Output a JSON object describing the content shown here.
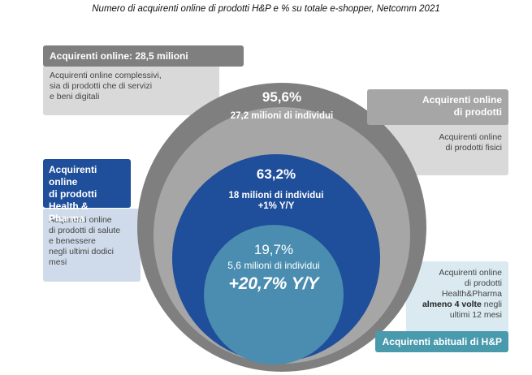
{
  "title": "Numero di acquirenti online di prodotti H&P e % su totale e-shopper, Netcomm 2021",
  "colors": {
    "outer_ring": "#7f7f7f",
    "ring2": "#a6a6a6",
    "ring3": "#1f4e9a",
    "inner": "#4a8db0",
    "box_dark_gray": "#7f7f7f",
    "box_light_gray": "#d9d9d9",
    "box_blue": "#1f4e9a",
    "box_light_blue": "#cfdbea",
    "box_teal": "#4a9aae",
    "box_light_teal": "#daeaf0"
  },
  "boxes": {
    "online": {
      "header": "Acquirenti online: 28,5 milioni",
      "desc": [
        "Acquirenti online complessivi,",
        "sia di prodotti che di servizi",
        "e beni digitali"
      ]
    },
    "prodotti": {
      "header": [
        "Acquirenti online",
        "di prodotti"
      ],
      "desc": [
        "Acquirenti online",
        "di prodotti fisici"
      ]
    },
    "hp": {
      "header": [
        "Acquirenti online",
        "di prodotti",
        "Health & Pharma"
      ],
      "desc": [
        "Acquirenti online",
        "di prodotti di salute",
        "e benessere",
        "negli ultimi dodici",
        "mesi"
      ]
    },
    "abituali": {
      "desc_lines": [
        "Acquirenti online",
        "di prodotti",
        "Health&Pharma"
      ],
      "desc_bold": "almeno 4 volte",
      "desc_after_bold": " negli",
      "desc_end": "ultimi 12 mesi",
      "header": "Acquirenti abituali di H&P"
    }
  },
  "circles": {
    "c2": {
      "pct": "95,6%",
      "sub": "27,2 milioni di individui"
    },
    "c3": {
      "pct": "63,2%",
      "sub": "18 milioni di individui",
      "sub2": "+1% Y/Y"
    },
    "c4": {
      "pct": "19,7%",
      "sub": "5,6 milioni di individui",
      "big": "+20,7% Y/Y"
    }
  }
}
